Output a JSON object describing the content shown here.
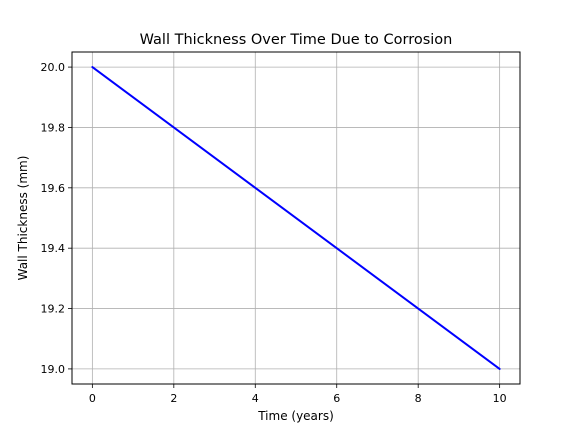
{
  "chart_data": {
    "type": "line",
    "title": "Wall Thickness Over Time Due to Corrosion",
    "xlabel": "Time (years)",
    "ylabel": "Wall Thickness (mm)",
    "xlim": [
      -0.5,
      10.5
    ],
    "ylim": [
      18.95,
      20.05
    ],
    "xticks": [
      0,
      2,
      4,
      6,
      8,
      10
    ],
    "xtick_labels": [
      "0",
      "2",
      "4",
      "6",
      "8",
      "10"
    ],
    "yticks": [
      19.0,
      19.2,
      19.4,
      19.6,
      19.8,
      20.0
    ],
    "ytick_labels": [
      "19.0",
      "19.2",
      "19.4",
      "19.6",
      "19.8",
      "20.0"
    ],
    "grid": true,
    "legend": "none",
    "series": [
      {
        "color": "#0000ff",
        "x": [
          0,
          10
        ],
        "y": [
          20.0,
          19.0
        ]
      }
    ]
  }
}
